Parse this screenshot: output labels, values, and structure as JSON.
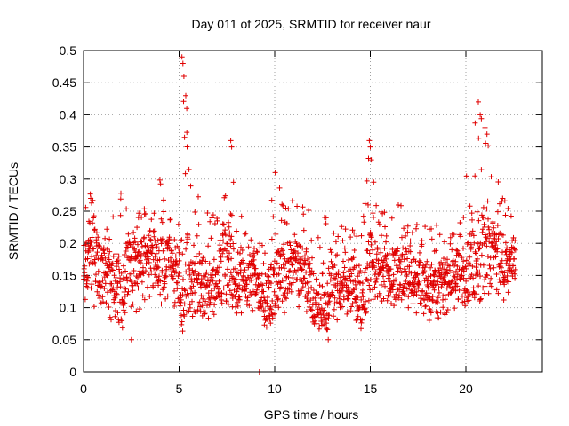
{
  "chart_data": {
    "type": "scatter",
    "title": "Day 011 of 2025, SRMTID for receiver naur",
    "xlabel": "GPS time / hours",
    "ylabel": "SRMTID / TECUs",
    "xlim": [
      0,
      24
    ],
    "ylim": [
      0,
      0.5
    ],
    "xticks": [
      0,
      5,
      10,
      15,
      20
    ],
    "xtick_labels": [
      "0",
      "5",
      "10",
      "15",
      "20"
    ],
    "yticks": [
      0,
      0.05,
      0.1,
      0.15,
      0.2,
      0.25,
      0.3,
      0.35,
      0.4,
      0.45,
      0.5
    ],
    "ytick_labels": [
      "0",
      "0.05",
      "0.1",
      "0.15",
      "0.2",
      "0.25",
      "0.3",
      "0.35",
      "0.4",
      "0.45",
      "0.5"
    ],
    "grid": true,
    "marker": "+",
    "marker_color": "#e00000",
    "x_range_of_data": [
      0,
      22.6
    ],
    "envelope": {
      "x": [
        0.0,
        0.5,
        1.0,
        1.5,
        2.0,
        2.5,
        3.0,
        3.5,
        4.0,
        4.5,
        5.0,
        5.2,
        5.5,
        6.0,
        6.5,
        7.0,
        7.5,
        8.0,
        8.5,
        9.0,
        9.5,
        10.0,
        10.5,
        11.0,
        11.5,
        12.0,
        12.5,
        13.0,
        13.5,
        14.0,
        14.5,
        15.0,
        15.5,
        16.0,
        16.5,
        17.0,
        17.5,
        18.0,
        18.5,
        19.0,
        19.5,
        20.0,
        20.5,
        21.0,
        21.5,
        22.0,
        22.6
      ],
      "mid": [
        0.16,
        0.2,
        0.16,
        0.15,
        0.13,
        0.16,
        0.17,
        0.18,
        0.17,
        0.18,
        0.15,
        0.14,
        0.16,
        0.14,
        0.13,
        0.15,
        0.18,
        0.15,
        0.14,
        0.15,
        0.11,
        0.14,
        0.15,
        0.17,
        0.16,
        0.12,
        0.1,
        0.15,
        0.13,
        0.15,
        0.12,
        0.18,
        0.17,
        0.16,
        0.15,
        0.16,
        0.14,
        0.13,
        0.14,
        0.14,
        0.16,
        0.15,
        0.18,
        0.2,
        0.19,
        0.17,
        0.18
      ],
      "lo": [
        0.1,
        0.1,
        0.09,
        0.08,
        0.06,
        0.08,
        0.1,
        0.11,
        0.1,
        0.12,
        0.08,
        0.06,
        0.09,
        0.08,
        0.08,
        0.09,
        0.1,
        0.09,
        0.08,
        0.09,
        0.06,
        0.07,
        0.09,
        0.1,
        0.09,
        0.07,
        0.05,
        0.08,
        0.08,
        0.09,
        0.06,
        0.11,
        0.1,
        0.1,
        0.09,
        0.1,
        0.08,
        0.08,
        0.08,
        0.09,
        0.1,
        0.1,
        0.1,
        0.12,
        0.12,
        0.11,
        0.12
      ],
      "hi": [
        0.25,
        0.29,
        0.25,
        0.24,
        0.3,
        0.25,
        0.28,
        0.24,
        0.3,
        0.24,
        0.27,
        0.49,
        0.35,
        0.29,
        0.26,
        0.24,
        0.36,
        0.27,
        0.22,
        0.21,
        0.2,
        0.32,
        0.27,
        0.29,
        0.27,
        0.24,
        0.24,
        0.27,
        0.23,
        0.22,
        0.23,
        0.36,
        0.25,
        0.25,
        0.27,
        0.24,
        0.23,
        0.24,
        0.23,
        0.21,
        0.22,
        0.3,
        0.42,
        0.38,
        0.31,
        0.3,
        0.23
      ]
    },
    "outlier_points": [
      {
        "x": 9.2,
        "y": 0.0
      },
      {
        "x": 5.15,
        "y": 0.49
      },
      {
        "x": 5.2,
        "y": 0.48
      },
      {
        "x": 5.25,
        "y": 0.46
      },
      {
        "x": 5.35,
        "y": 0.43
      },
      {
        "x": 5.4,
        "y": 0.41
      },
      {
        "x": 7.7,
        "y": 0.36
      },
      {
        "x": 7.75,
        "y": 0.35
      },
      {
        "x": 14.95,
        "y": 0.36
      },
      {
        "x": 15.0,
        "y": 0.35
      },
      {
        "x": 15.05,
        "y": 0.33
      },
      {
        "x": 20.65,
        "y": 0.42
      },
      {
        "x": 20.75,
        "y": 0.4
      },
      {
        "x": 21.0,
        "y": 0.38
      },
      {
        "x": 21.1,
        "y": 0.37
      },
      {
        "x": 2.5,
        "y": 0.05
      },
      {
        "x": 12.8,
        "y": 0.05
      }
    ]
  }
}
